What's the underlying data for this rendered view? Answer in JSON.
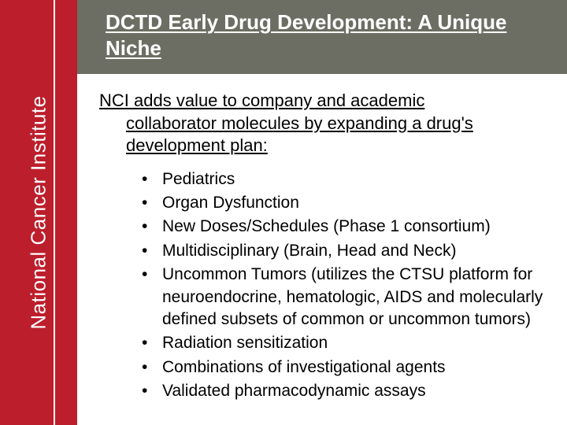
{
  "colors": {
    "sidebar_bg": "#bd1e2c",
    "header_bg": "#6d6e63",
    "text": "#000000",
    "header_text": "#ffffff",
    "sidebar_text": "#ffffff"
  },
  "sidebar": {
    "label": "National Cancer Institute"
  },
  "header": {
    "title": "DCTD Early Drug Development: A Unique Niche"
  },
  "intro": {
    "line1": "NCI adds value to company and academic",
    "line2": "collaborator molecules by expanding a drug's development plan:"
  },
  "bullets": [
    "Pediatrics",
    "Organ Dysfunction",
    "New Doses/Schedules (Phase 1 consortium)",
    "Multidisciplinary (Brain, Head and Neck)",
    "Uncommon Tumors (utilizes the CTSU platform for neuroendocrine, hematologic, AIDS and molecularly defined subsets of common or uncommon tumors)",
    "Radiation sensitization",
    "Combinations of investigational agents",
    "Validated pharmacodynamic assays"
  ]
}
